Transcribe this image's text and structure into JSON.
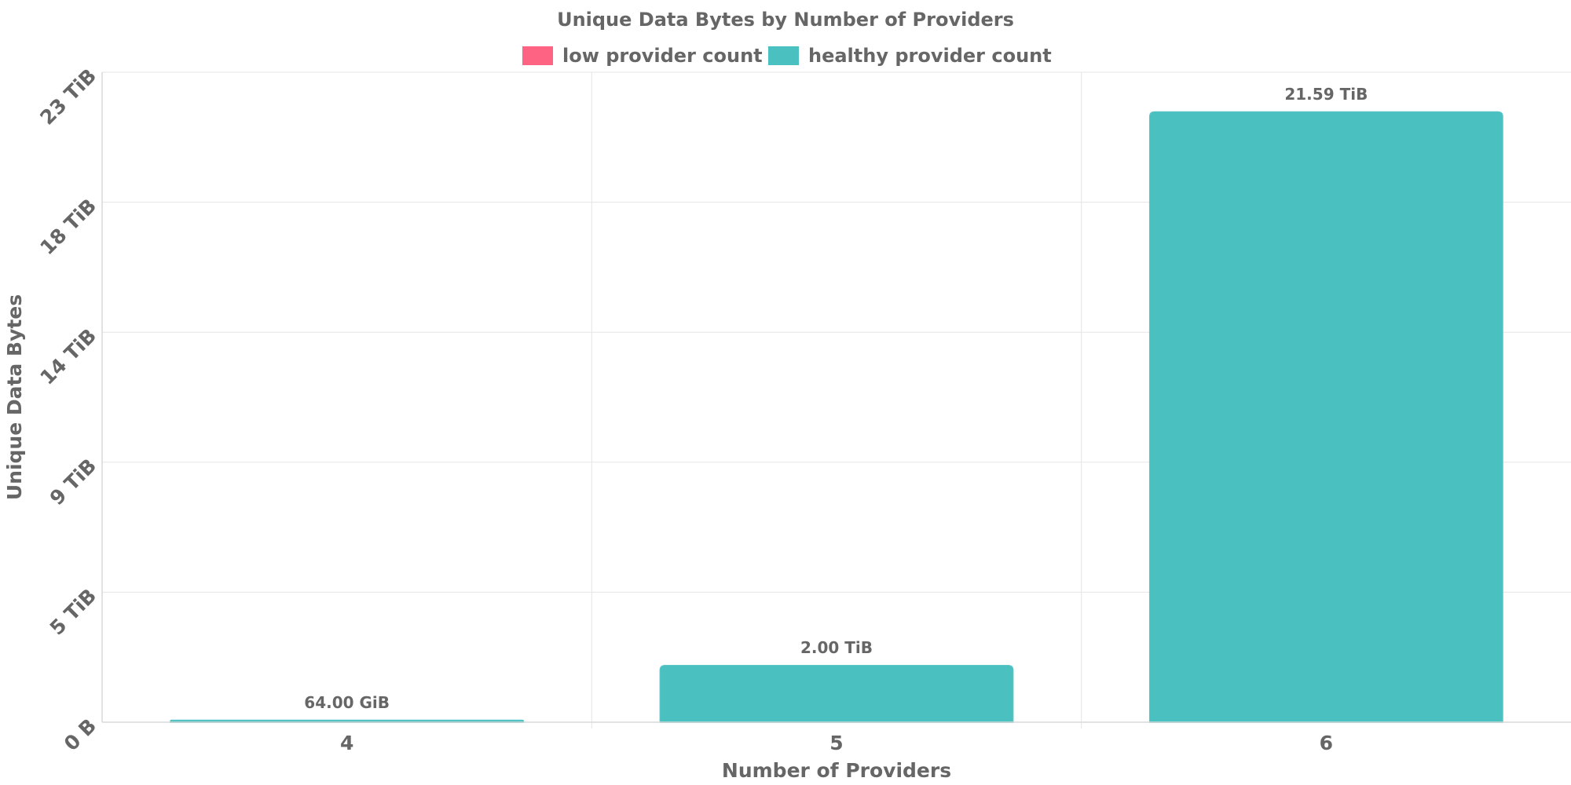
{
  "chart_data": {
    "type": "bar",
    "title": "Unique Data Bytes by Number of Providers",
    "xlabel": "Number of Providers",
    "ylabel": "Unique Data Bytes",
    "categories": [
      "4",
      "5",
      "6"
    ],
    "y_unit": "TiB",
    "ylim": [
      0,
      23
    ],
    "y_ticks": [
      {
        "value": 0,
        "label": "0 B"
      },
      {
        "value": 4.6,
        "label": "5 TiB"
      },
      {
        "value": 9.2,
        "label": "9 TiB"
      },
      {
        "value": 13.8,
        "label": "14 TiB"
      },
      {
        "value": 18.4,
        "label": "18 TiB"
      },
      {
        "value": 23,
        "label": "23 TiB"
      }
    ],
    "series": [
      {
        "name": "low provider count",
        "color": "#ff6384",
        "values": [
          0,
          0,
          0
        ]
      },
      {
        "name": "healthy provider count",
        "color": "#4bc0c0",
        "values": [
          0.0625,
          2.0,
          21.59
        ]
      }
    ],
    "data_labels": [
      "64.00 GiB",
      "2.00 TiB",
      "21.59 TiB"
    ],
    "legend": {
      "position": "top"
    },
    "grid": true
  }
}
